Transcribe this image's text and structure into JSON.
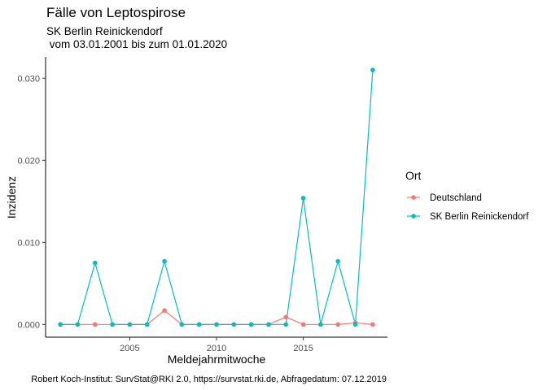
{
  "chart_data": {
    "type": "line",
    "title": "Fälle von Leptospirose",
    "subtitle_line1": "SK Berlin Reinickendorf",
    "subtitle_line2": " vom 03.01.2001 bis zum 01.01.2020",
    "xlabel": "Meldejahrmitwoche",
    "ylabel": "Inzidenz",
    "caption": "Robert Koch-Institut: SurvStat@RKI 2.0, https://survstat.rki.de, Abfragedatum: 07.12.2019",
    "xlim": [
      2000.15,
      2019.85
    ],
    "ylim": [
      -0.00155,
      0.0326
    ],
    "x_ticks": [
      2005,
      2010,
      2015
    ],
    "x_tick_labels": [
      "2005",
      "2010",
      "2015"
    ],
    "y_ticks": [
      0,
      0.01,
      0.02,
      0.03
    ],
    "y_tick_labels": [
      "0.000",
      "0.010",
      "0.020",
      "0.030"
    ],
    "grid": false,
    "legend": {
      "title": "Ort",
      "placement": "right",
      "entries": [
        "Deutschland",
        "SK Berlin Reinickendorf"
      ]
    },
    "x": [
      2001,
      2002,
      2003,
      2004,
      2005,
      2006,
      2007,
      2008,
      2009,
      2010,
      2011,
      2012,
      2013,
      2014,
      2015,
      2016,
      2017,
      2018,
      2019
    ],
    "series": [
      {
        "name": "Deutschland",
        "color": "#F8766D",
        "values": [
          0,
          0,
          0,
          0,
          0,
          0,
          0.0017,
          0,
          0,
          0,
          0,
          0,
          0,
          0.0009,
          0,
          0,
          0,
          0.0002,
          0
        ]
      },
      {
        "name": "SK Berlin Reinickendorf",
        "color": "#00BFC4",
        "values": [
          0,
          0,
          0.0075,
          0,
          0,
          0,
          0.0077,
          0,
          0,
          0,
          0,
          0,
          0,
          0,
          0.0154,
          0,
          0.0077,
          0,
          0.031
        ]
      }
    ]
  }
}
